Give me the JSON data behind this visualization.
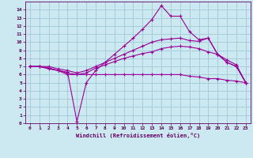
{
  "xlabel": "Windchill (Refroidissement éolien,°C)",
  "background_color": "#cce8f0",
  "grid_color": "#a0c8d8",
  "line_color": "#990099",
  "xlim": [
    -0.5,
    23.5
  ],
  "ylim": [
    0,
    15
  ],
  "xticks": [
    0,
    1,
    2,
    3,
    4,
    5,
    6,
    7,
    8,
    9,
    10,
    11,
    12,
    13,
    14,
    15,
    16,
    17,
    18,
    19,
    20,
    21,
    22,
    23
  ],
  "yticks": [
    0,
    1,
    2,
    3,
    4,
    5,
    6,
    7,
    8,
    9,
    10,
    11,
    12,
    13,
    14
  ],
  "series": [
    {
      "x": [
        0,
        1,
        2,
        3,
        4,
        5,
        6,
        7,
        8,
        9,
        10,
        11,
        12,
        13,
        14,
        15,
        16,
        17,
        18,
        19,
        20,
        21,
        22,
        23
      ],
      "y": [
        7.0,
        7.0,
        6.7,
        6.5,
        6.3,
        0.2,
        5.0,
        6.5,
        7.5,
        8.5,
        9.5,
        10.5,
        11.6,
        12.8,
        14.5,
        13.2,
        13.2,
        11.3,
        10.3,
        10.5,
        8.5,
        7.5,
        7.0,
        5.0
      ]
    },
    {
      "x": [
        0,
        1,
        2,
        3,
        4,
        5,
        6,
        7,
        8,
        9,
        10,
        11,
        12,
        13,
        14,
        15,
        16,
        17,
        18,
        19,
        20,
        21,
        22,
        23
      ],
      "y": [
        7.0,
        7.0,
        7.0,
        6.7,
        6.5,
        6.2,
        6.5,
        7.0,
        7.5,
        8.0,
        8.5,
        9.0,
        9.5,
        10.0,
        10.3,
        10.4,
        10.5,
        10.2,
        10.1,
        10.5,
        8.5,
        7.5,
        7.0,
        5.0
      ]
    },
    {
      "x": [
        0,
        1,
        2,
        3,
        4,
        5,
        6,
        7,
        8,
        9,
        10,
        11,
        12,
        13,
        14,
        15,
        16,
        17,
        18,
        19,
        20,
        21,
        22,
        23
      ],
      "y": [
        7.0,
        7.0,
        6.8,
        6.5,
        6.2,
        6.0,
        6.2,
        6.8,
        7.2,
        7.6,
        8.0,
        8.3,
        8.6,
        8.8,
        9.2,
        9.4,
        9.5,
        9.4,
        9.2,
        8.8,
        8.5,
        7.8,
        7.2,
        5.0
      ]
    },
    {
      "x": [
        0,
        1,
        2,
        3,
        4,
        5,
        6,
        7,
        8,
        9,
        10,
        11,
        12,
        13,
        14,
        15,
        16,
        17,
        18,
        19,
        20,
        21,
        22,
        23
      ],
      "y": [
        7.0,
        7.0,
        6.8,
        6.5,
        6.0,
        6.0,
        6.0,
        6.0,
        6.0,
        6.0,
        6.0,
        6.0,
        6.0,
        6.0,
        6.0,
        6.0,
        6.0,
        5.8,
        5.7,
        5.5,
        5.5,
        5.3,
        5.2,
        5.0
      ]
    }
  ]
}
